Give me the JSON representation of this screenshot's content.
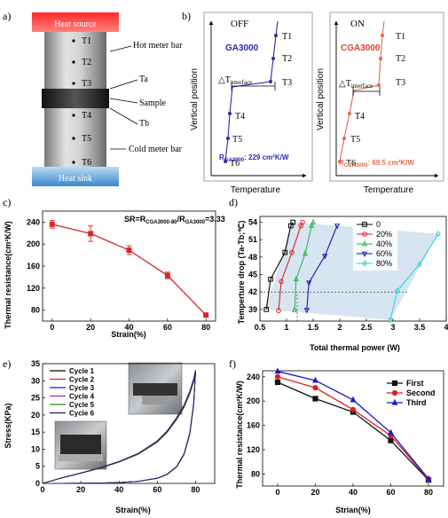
{
  "panels": {
    "a": {
      "label": "a)",
      "heat_source": "Heat source",
      "heat_sink": "Heat sink",
      "points": [
        "T1",
        "T2",
        "T3",
        "T4",
        "T5",
        "T6"
      ],
      "callouts": {
        "hot_bar": "Hot meter bar",
        "hot_bar_2": "",
        "ta": "Ta",
        "sample": "Sample",
        "tb": "Tb",
        "cold_bar": "Cold meter bar"
      }
    },
    "b": {
      "label": "b)",
      "left": {
        "title": "OFF",
        "name": "GA3000",
        "resistance": "R",
        "resistance_sub": "GA3000",
        "resistance_val": ": 229 cm²K/W",
        "color": "#2a2ab0"
      },
      "right": {
        "title": "ON",
        "name": "CGA3000",
        "resistance": "R",
        "resistance_sub": "CGA3000",
        "resistance_val": ": 69.5 cm²K/W",
        "color": "#e06a50"
      },
      "delta_t": "△T",
      "delta_sub": "interface",
      "ylabel": "Vertical position",
      "xlabel": "Temperature",
      "points": [
        "T1",
        "T2",
        "T3",
        "T4",
        "T5",
        "T6"
      ]
    }
  },
  "chart_data": [
    {
      "id": "c",
      "panel_label": "c)",
      "type": "line",
      "xlabel": "Strain(%)",
      "ylabel": "Thermal resistance(cm²K/W)",
      "annotation_main": "SR=R",
      "annotation_sub1": "CGA3000-80",
      "annotation_mid": "/R",
      "annotation_sub2": "GA3000",
      "annotation_end": "=3.33",
      "x": [
        0,
        20,
        40,
        60,
        80
      ],
      "series": [
        {
          "values": [
            236,
            219,
            189,
            143,
            71
          ],
          "errors": [
            7,
            14,
            8,
            6,
            2
          ],
          "color": "#d42a2a"
        }
      ],
      "xlim": [
        -5,
        85
      ],
      "ylim": [
        60,
        260
      ],
      "xticks": [
        0,
        20,
        40,
        60,
        80
      ],
      "yticks": [
        80,
        120,
        160,
        200,
        240
      ]
    },
    {
      "id": "d",
      "panel_label": "d)",
      "type": "line",
      "xlabel": "Total thermal power (W)",
      "ylabel": "Temperture drop (Ta-Tb;℃)",
      "xlim": [
        0.5,
        4.0
      ],
      "ylim": [
        37,
        55
      ],
      "xticks": [
        0.5,
        1.0,
        1.5,
        2.0,
        2.5,
        3.0,
        3.5,
        4.0
      ],
      "yticks": [
        39,
        42,
        45,
        48,
        51,
        54
      ],
      "legend_position": "top-right",
      "series": [
        {
          "name": "0",
          "color": "#000000",
          "marker": "square",
          "x": [
            0.62,
            0.7,
            0.97,
            1.08,
            1.12
          ],
          "y": [
            39.0,
            44.2,
            48.8,
            53.4,
            54.0
          ]
        },
        {
          "name": "20%",
          "color": "#e02020",
          "marker": "circle",
          "x": [
            0.85,
            0.9,
            1.1,
            1.27,
            1.3
          ],
          "y": [
            38.8,
            43.8,
            48.8,
            53.4,
            54.0
          ]
        },
        {
          "name": "40%",
          "color": "#2fb84a",
          "marker": "triangle",
          "x": [
            1.15,
            1.18,
            1.35,
            1.47,
            1.5
          ],
          "y": [
            38.9,
            44.2,
            48.6,
            53.4,
            54.0
          ]
        },
        {
          "name": "60%",
          "color": "#1a1ab8",
          "marker": "triangle-down",
          "x": [
            1.38,
            1.42,
            1.72,
            1.95
          ],
          "y": [
            38.9,
            43.6,
            48.2,
            53.4
          ]
        },
        {
          "name": "80%",
          "color": "#2ad8d8",
          "marker": "diamond",
          "x": [
            2.95,
            3.08,
            3.5,
            3.85
          ],
          "y": [
            37.2,
            42.2,
            46.8,
            52.0
          ]
        }
      ]
    },
    {
      "id": "e",
      "panel_label": "e)",
      "type": "line",
      "xlabel": "Strain(%)",
      "ylabel": "Stress(KPa)",
      "xlim": [
        0,
        90
      ],
      "ylim": [
        0,
        35
      ],
      "xticks": [
        0,
        20,
        40,
        60,
        80
      ],
      "yticks": [
        0,
        5,
        10,
        15,
        20,
        25,
        30,
        35
      ],
      "legend_position": "top-left",
      "loading_x": [
        0,
        10,
        20,
        30,
        40,
        50,
        60,
        65,
        70,
        74,
        77,
        79,
        80
      ],
      "loading_y": [
        0,
        1.6,
        3.0,
        4.5,
        6.3,
        8.6,
        12.2,
        15.0,
        18.8,
        22.5,
        26.5,
        30.0,
        32.5
      ],
      "unloading_x": [
        80,
        79,
        77,
        74,
        70,
        65,
        60,
        50,
        40,
        30,
        20,
        10,
        5
      ],
      "unloading_y": [
        32.5,
        23.0,
        14.5,
        8.5,
        4.8,
        2.6,
        1.5,
        0.6,
        0.25,
        0.1,
        0.05,
        0.0,
        0.0
      ],
      "series": [
        {
          "name": "Cycle 1",
          "color": "#000000",
          "scale": 0.99
        },
        {
          "name": "Cycle 2",
          "color": "#e02020",
          "scale": 1.0
        },
        {
          "name": "Cycle 3",
          "color": "#1a1acc",
          "scale": 1.01
        },
        {
          "name": "Cycle 4",
          "color": "#b020b0",
          "scale": 1.02
        },
        {
          "name": "Cycle 5",
          "color": "#2a8a2a",
          "scale": 1.005
        },
        {
          "name": "Cycle 6",
          "color": "#1a1a70",
          "scale": 1.015
        }
      ]
    },
    {
      "id": "f",
      "panel_label": "f)",
      "type": "line",
      "xlabel": "Strian(%)",
      "ylabel": "Thermal resistance(cm²K/W)",
      "x": [
        0,
        20,
        40,
        60,
        80
      ],
      "xlim": [
        -8,
        88
      ],
      "ylim": [
        60,
        250
      ],
      "xticks": [
        0,
        20,
        40,
        60,
        80
      ],
      "yticks": [
        80,
        120,
        160,
        200,
        240
      ],
      "legend_position": "top-right",
      "series": [
        {
          "name": "First",
          "color": "#111111",
          "marker": "square",
          "values": [
            231,
            204,
            182,
            135,
            70
          ]
        },
        {
          "name": "Second",
          "color": "#e02020",
          "marker": "circle",
          "values": [
            240,
            222,
            186,
            143,
            71
          ]
        },
        {
          "name": "Third",
          "color": "#1a1acc",
          "marker": "triangle",
          "values": [
            249,
            234,
            202,
            148,
            72
          ]
        }
      ]
    }
  ]
}
